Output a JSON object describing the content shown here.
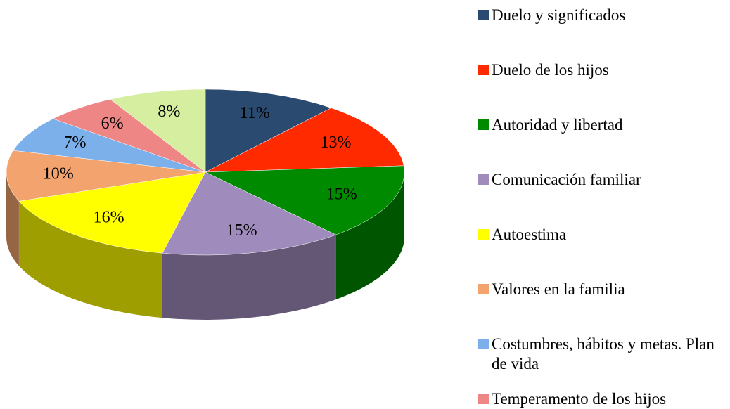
{
  "chart_data": {
    "type": "pie3d",
    "categories": [
      "Duelo y significados",
      "Duelo de los hijos",
      "Autoridad y libertad",
      "Comunicación familiar",
      "Autoestima",
      "Valores en la familia",
      "Costumbres, hábitos y metas. Plan de vida",
      "Temperamento de los hijos",
      null
    ],
    "values": [
      11,
      13,
      15,
      15,
      16,
      10,
      7,
      6,
      8
    ],
    "value_labels": [
      "11%",
      "13%",
      "15%",
      "15%",
      "16%",
      "10%",
      "7%",
      "6%",
      "8%"
    ],
    "colors": [
      "#2b4a70",
      "#ff2a00",
      "#008a00",
      "#a08cbc",
      "#ffff00",
      "#f2a36e",
      "#7cb0ea",
      "#ee8686",
      "#d6eea0"
    ],
    "legend": "right"
  }
}
